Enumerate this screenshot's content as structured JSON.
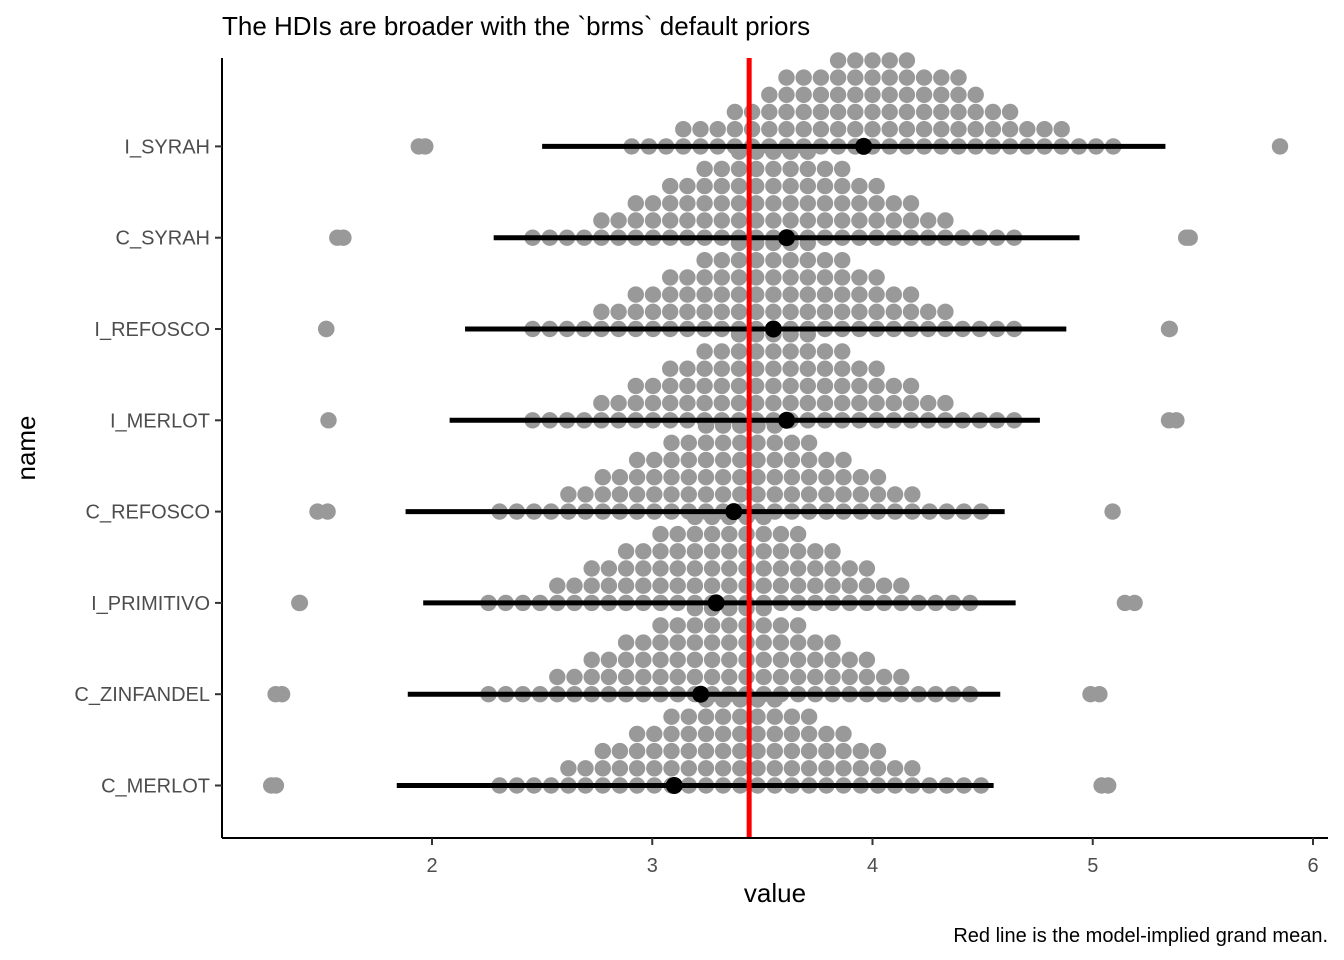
{
  "chart_data": {
    "type": "dotplot",
    "title": "The HDIs are broader with the `brms` default priors",
    "caption": "Red line is the model-implied grand mean.",
    "xlabel": "value",
    "ylabel": "name",
    "xlim": [
      1.1,
      6.05
    ],
    "x_ticks": [
      2,
      3,
      4,
      5,
      6
    ],
    "categories": [
      "C_MERLOT",
      "C_ZINFANDEL",
      "I_PRIMITIVO",
      "C_REFOSCO",
      "I_MERLOT",
      "I_REFOSCO",
      "C_SYRAH",
      "I_SYRAH"
    ],
    "grand_mean": 3.44,
    "series": [
      {
        "name": "C_MERLOT",
        "mode": 3.1,
        "hdi": [
          1.84,
          4.55
        ],
        "min": 1.27,
        "max": 5.07,
        "peak": 3.4,
        "spread": 0.5,
        "levels": 6
      },
      {
        "name": "C_ZINFANDEL",
        "mode": 3.22,
        "hdi": [
          1.89,
          4.58
        ],
        "min": 1.29,
        "max": 5.03,
        "peak": 3.35,
        "spread": 0.5,
        "levels": 6
      },
      {
        "name": "I_PRIMITIVO",
        "mode": 3.29,
        "hdi": [
          1.96,
          4.65
        ],
        "min": 1.4,
        "max": 5.19,
        "peak": 3.35,
        "spread": 0.5,
        "levels": 6
      },
      {
        "name": "C_REFOSCO",
        "mode": 3.37,
        "hdi": [
          1.88,
          4.6
        ],
        "min": 1.48,
        "max": 5.09,
        "peak": 3.4,
        "spread": 0.5,
        "levels": 6
      },
      {
        "name": "I_MERLOT",
        "mode": 3.61,
        "hdi": [
          2.08,
          4.76
        ],
        "min": 1.53,
        "max": 5.38,
        "peak": 3.55,
        "spread": 0.5,
        "levels": 6
      },
      {
        "name": "I_REFOSCO",
        "mode": 3.55,
        "hdi": [
          2.15,
          4.88
        ],
        "min": 1.52,
        "max": 5.35,
        "peak": 3.55,
        "spread": 0.5,
        "levels": 6
      },
      {
        "name": "C_SYRAH",
        "mode": 3.61,
        "hdi": [
          2.28,
          4.94
        ],
        "min": 1.57,
        "max": 5.44,
        "peak": 3.55,
        "spread": 0.5,
        "levels": 6
      },
      {
        "name": "I_SYRAH",
        "mode": 3.96,
        "hdi": [
          2.5,
          5.33
        ],
        "min": 1.94,
        "max": 5.85,
        "peak": 4.0,
        "spread": 0.52,
        "levels": 6
      }
    ],
    "colors": {
      "dots": "#999999",
      "interval": "#000000",
      "grand_mean_line": "#ff0000",
      "axis": "#000000"
    },
    "grid": false,
    "legend": "none"
  }
}
